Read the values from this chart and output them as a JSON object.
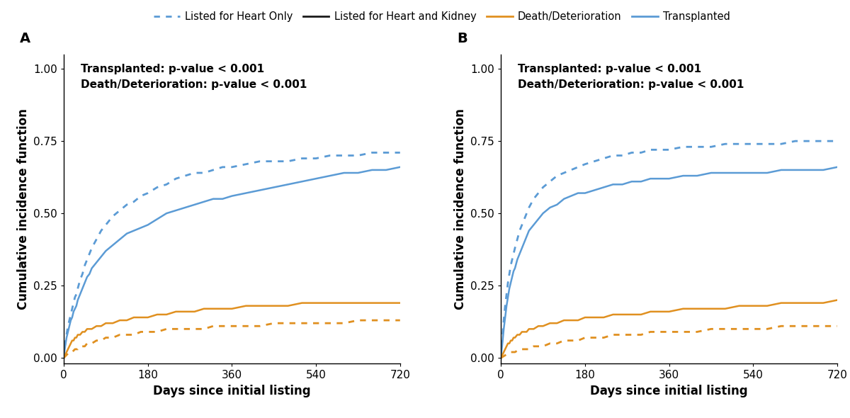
{
  "blue_color": "#5B9BD5",
  "orange_color": "#E09020",
  "background_color": "#ffffff",
  "ylabel": "Cumulative incidence function",
  "xlabel": "Days since initial listing",
  "xlim": [
    0,
    720
  ],
  "ylim": [
    -0.02,
    1.05
  ],
  "yticks": [
    0.0,
    0.25,
    0.5,
    0.75,
    1.0
  ],
  "xticks": [
    0,
    180,
    360,
    540,
    720
  ],
  "annotation_A": "Transplanted: p-value < 0.001\nDeath/Deterioration: p-value < 0.001",
  "annotation_B": "Transplanted: p-value < 0.001\nDeath/Deterioration: p-value < 0.001",
  "panel_labels": [
    "A",
    "B"
  ],
  "panel_A": {
    "blue_solid_x": [
      0,
      3,
      6,
      9,
      12,
      15,
      18,
      21,
      24,
      27,
      30,
      35,
      40,
      45,
      50,
      55,
      60,
      70,
      80,
      90,
      105,
      120,
      135,
      150,
      165,
      180,
      200,
      220,
      240,
      260,
      280,
      300,
      320,
      340,
      360,
      390,
      420,
      450,
      480,
      510,
      540,
      570,
      600,
      630,
      660,
      690,
      720
    ],
    "blue_solid_y": [
      0.0,
      0.04,
      0.07,
      0.09,
      0.11,
      0.13,
      0.14,
      0.16,
      0.17,
      0.18,
      0.2,
      0.22,
      0.24,
      0.26,
      0.28,
      0.29,
      0.31,
      0.33,
      0.35,
      0.37,
      0.39,
      0.41,
      0.43,
      0.44,
      0.45,
      0.46,
      0.48,
      0.5,
      0.51,
      0.52,
      0.53,
      0.54,
      0.55,
      0.55,
      0.56,
      0.57,
      0.58,
      0.59,
      0.6,
      0.61,
      0.62,
      0.63,
      0.64,
      0.64,
      0.65,
      0.65,
      0.66
    ],
    "blue_dotted_x": [
      0,
      3,
      6,
      9,
      12,
      15,
      18,
      21,
      24,
      27,
      30,
      35,
      40,
      45,
      50,
      55,
      60,
      70,
      80,
      90,
      105,
      120,
      135,
      150,
      165,
      180,
      200,
      220,
      240,
      260,
      280,
      300,
      320,
      340,
      360,
      390,
      420,
      450,
      480,
      510,
      540,
      570,
      600,
      630,
      660,
      690,
      720
    ],
    "blue_dotted_y": [
      0.0,
      0.05,
      0.08,
      0.11,
      0.13,
      0.15,
      0.17,
      0.19,
      0.21,
      0.22,
      0.24,
      0.27,
      0.29,
      0.32,
      0.34,
      0.36,
      0.38,
      0.41,
      0.44,
      0.46,
      0.49,
      0.51,
      0.53,
      0.54,
      0.56,
      0.57,
      0.59,
      0.6,
      0.62,
      0.63,
      0.64,
      0.64,
      0.65,
      0.66,
      0.66,
      0.67,
      0.68,
      0.68,
      0.68,
      0.69,
      0.69,
      0.7,
      0.7,
      0.7,
      0.71,
      0.71,
      0.71
    ],
    "orange_solid_x": [
      0,
      3,
      6,
      9,
      12,
      15,
      18,
      21,
      24,
      27,
      30,
      35,
      40,
      45,
      50,
      55,
      60,
      70,
      80,
      90,
      105,
      120,
      135,
      150,
      165,
      180,
      200,
      220,
      240,
      260,
      280,
      300,
      320,
      340,
      360,
      390,
      420,
      450,
      480,
      510,
      540,
      570,
      600,
      630,
      660,
      690,
      720
    ],
    "orange_solid_y": [
      0.0,
      0.01,
      0.02,
      0.03,
      0.04,
      0.05,
      0.06,
      0.06,
      0.07,
      0.07,
      0.08,
      0.08,
      0.09,
      0.09,
      0.1,
      0.1,
      0.1,
      0.11,
      0.11,
      0.12,
      0.12,
      0.13,
      0.13,
      0.14,
      0.14,
      0.14,
      0.15,
      0.15,
      0.16,
      0.16,
      0.16,
      0.17,
      0.17,
      0.17,
      0.17,
      0.18,
      0.18,
      0.18,
      0.18,
      0.19,
      0.19,
      0.19,
      0.19,
      0.19,
      0.19,
      0.19,
      0.19
    ],
    "orange_dotted_x": [
      0,
      3,
      6,
      9,
      12,
      15,
      18,
      21,
      24,
      27,
      30,
      35,
      40,
      45,
      50,
      55,
      60,
      70,
      80,
      90,
      105,
      120,
      135,
      150,
      165,
      180,
      200,
      220,
      240,
      260,
      280,
      300,
      320,
      340,
      360,
      390,
      420,
      450,
      480,
      510,
      540,
      570,
      600,
      630,
      660,
      690,
      720
    ],
    "orange_dotted_y": [
      0.0,
      0.005,
      0.01,
      0.015,
      0.02,
      0.02,
      0.02,
      0.025,
      0.03,
      0.03,
      0.03,
      0.04,
      0.04,
      0.04,
      0.05,
      0.05,
      0.05,
      0.06,
      0.06,
      0.07,
      0.07,
      0.08,
      0.08,
      0.08,
      0.09,
      0.09,
      0.09,
      0.1,
      0.1,
      0.1,
      0.1,
      0.1,
      0.11,
      0.11,
      0.11,
      0.11,
      0.11,
      0.12,
      0.12,
      0.12,
      0.12,
      0.12,
      0.12,
      0.13,
      0.13,
      0.13,
      0.13
    ]
  },
  "panel_B": {
    "blue_solid_x": [
      0,
      3,
      6,
      9,
      12,
      15,
      18,
      21,
      24,
      27,
      30,
      35,
      40,
      45,
      50,
      55,
      60,
      70,
      80,
      90,
      105,
      120,
      135,
      150,
      165,
      180,
      200,
      220,
      240,
      260,
      280,
      300,
      320,
      340,
      360,
      390,
      420,
      450,
      480,
      510,
      540,
      570,
      600,
      630,
      660,
      690,
      720
    ],
    "blue_solid_y": [
      0.0,
      0.05,
      0.1,
      0.14,
      0.18,
      0.21,
      0.24,
      0.26,
      0.28,
      0.3,
      0.31,
      0.34,
      0.36,
      0.38,
      0.4,
      0.42,
      0.44,
      0.46,
      0.48,
      0.5,
      0.52,
      0.53,
      0.55,
      0.56,
      0.57,
      0.57,
      0.58,
      0.59,
      0.6,
      0.6,
      0.61,
      0.61,
      0.62,
      0.62,
      0.62,
      0.63,
      0.63,
      0.64,
      0.64,
      0.64,
      0.64,
      0.64,
      0.65,
      0.65,
      0.65,
      0.65,
      0.66
    ],
    "blue_dotted_x": [
      0,
      3,
      6,
      9,
      12,
      15,
      18,
      21,
      24,
      27,
      30,
      35,
      40,
      45,
      50,
      55,
      60,
      70,
      80,
      90,
      105,
      120,
      135,
      150,
      165,
      180,
      200,
      220,
      240,
      260,
      280,
      300,
      320,
      340,
      360,
      390,
      420,
      450,
      480,
      510,
      540,
      570,
      600,
      630,
      660,
      690,
      720
    ],
    "blue_dotted_y": [
      0.0,
      0.07,
      0.13,
      0.18,
      0.22,
      0.26,
      0.29,
      0.32,
      0.34,
      0.36,
      0.38,
      0.41,
      0.44,
      0.46,
      0.48,
      0.5,
      0.52,
      0.55,
      0.57,
      0.59,
      0.61,
      0.63,
      0.64,
      0.65,
      0.66,
      0.67,
      0.68,
      0.69,
      0.7,
      0.7,
      0.71,
      0.71,
      0.72,
      0.72,
      0.72,
      0.73,
      0.73,
      0.73,
      0.74,
      0.74,
      0.74,
      0.74,
      0.74,
      0.75,
      0.75,
      0.75,
      0.75
    ],
    "orange_solid_x": [
      0,
      3,
      6,
      9,
      12,
      15,
      18,
      21,
      24,
      27,
      30,
      35,
      40,
      45,
      50,
      55,
      60,
      70,
      80,
      90,
      105,
      120,
      135,
      150,
      165,
      180,
      200,
      220,
      240,
      260,
      280,
      300,
      320,
      340,
      360,
      390,
      420,
      450,
      480,
      510,
      540,
      570,
      600,
      630,
      660,
      690,
      720
    ],
    "orange_solid_y": [
      0.0,
      0.01,
      0.02,
      0.03,
      0.04,
      0.05,
      0.05,
      0.06,
      0.06,
      0.07,
      0.07,
      0.08,
      0.08,
      0.09,
      0.09,
      0.09,
      0.1,
      0.1,
      0.11,
      0.11,
      0.12,
      0.12,
      0.13,
      0.13,
      0.13,
      0.14,
      0.14,
      0.14,
      0.15,
      0.15,
      0.15,
      0.15,
      0.16,
      0.16,
      0.16,
      0.17,
      0.17,
      0.17,
      0.17,
      0.18,
      0.18,
      0.18,
      0.19,
      0.19,
      0.19,
      0.19,
      0.2
    ],
    "orange_dotted_x": [
      0,
      3,
      6,
      9,
      12,
      15,
      18,
      21,
      24,
      27,
      30,
      35,
      40,
      45,
      50,
      55,
      60,
      70,
      80,
      90,
      105,
      120,
      135,
      150,
      165,
      180,
      200,
      220,
      240,
      260,
      280,
      300,
      320,
      340,
      360,
      390,
      420,
      450,
      480,
      510,
      540,
      570,
      600,
      630,
      660,
      690,
      720
    ],
    "orange_dotted_y": [
      0.0,
      0.003,
      0.006,
      0.009,
      0.012,
      0.015,
      0.018,
      0.02,
      0.02,
      0.02,
      0.02,
      0.025,
      0.03,
      0.03,
      0.03,
      0.03,
      0.03,
      0.04,
      0.04,
      0.04,
      0.05,
      0.05,
      0.06,
      0.06,
      0.06,
      0.07,
      0.07,
      0.07,
      0.08,
      0.08,
      0.08,
      0.08,
      0.09,
      0.09,
      0.09,
      0.09,
      0.09,
      0.1,
      0.1,
      0.1,
      0.1,
      0.1,
      0.11,
      0.11,
      0.11,
      0.11,
      0.11
    ]
  }
}
